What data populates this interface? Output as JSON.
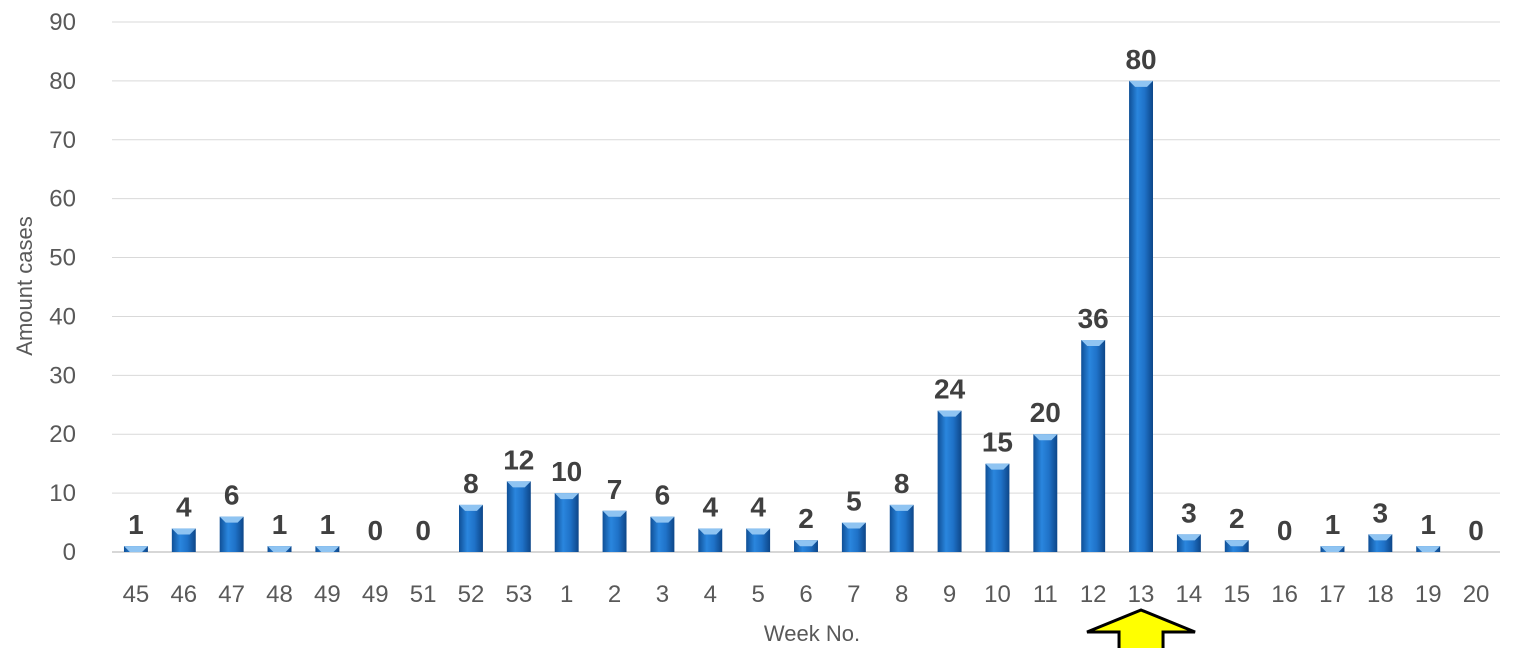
{
  "chart_data": {
    "type": "bar",
    "title": "",
    "xlabel": "Week No.",
    "ylabel": "Amount cases",
    "ylim": [
      0,
      90
    ],
    "yticks": [
      0,
      10,
      20,
      30,
      40,
      50,
      60,
      70,
      80,
      90
    ],
    "grid": true,
    "categories": [
      "45",
      "46",
      "47",
      "48",
      "49",
      "49",
      "51",
      "52",
      "53",
      "1",
      "2",
      "3",
      "4",
      "5",
      "6",
      "7",
      "8",
      "9",
      "10",
      "11",
      "12",
      "13",
      "14",
      "15",
      "16",
      "17",
      "18",
      "19",
      "20"
    ],
    "values": [
      1,
      4,
      6,
      1,
      1,
      0,
      0,
      8,
      12,
      10,
      7,
      6,
      4,
      4,
      2,
      5,
      8,
      24,
      15,
      20,
      36,
      80,
      3,
      2,
      0,
      1,
      3,
      1,
      0
    ],
    "bar_color": "#1f6fc5",
    "annotation": {
      "type": "arrow",
      "direction": "up",
      "at_category_index": 21,
      "color": "#ffff00"
    }
  }
}
